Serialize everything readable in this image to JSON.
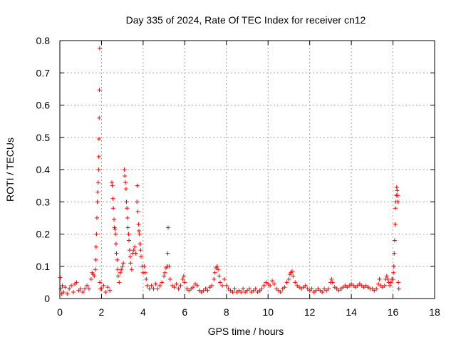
{
  "chart_data": {
    "type": "scatter",
    "title": "Day 335 of 2024, Rate Of TEC Index for receiver cn12",
    "xlabel": "GPS time / hours",
    "ylabel": "ROTI / TECUs",
    "xlim": [
      0,
      18
    ],
    "ylim": [
      0,
      0.8
    ],
    "x_ticks": [
      0,
      2,
      4,
      6,
      8,
      10,
      12,
      14,
      16,
      18
    ],
    "x_tick_labels": [
      "0",
      "2",
      "4",
      "6",
      "8",
      "10",
      "12",
      "14",
      "16",
      "18"
    ],
    "y_ticks": [
      0,
      0.1,
      0.2,
      0.3,
      0.4,
      0.5,
      0.6,
      0.7,
      0.8
    ],
    "y_tick_labels": [
      "0",
      "0.1",
      "0.2",
      "0.3",
      "0.4",
      "0.5",
      "0.6",
      "0.7",
      "0.8"
    ],
    "grid": true,
    "marker": "+",
    "marker_color": "#ff0000",
    "series": [
      {
        "name": "ROTI",
        "points": [
          [
            0.02,
            0.065
          ],
          [
            0.05,
            0.03
          ],
          [
            0.08,
            0.015
          ],
          [
            0.12,
            0.04
          ],
          [
            0.18,
            0.02
          ],
          [
            0.25,
            0.035
          ],
          [
            0.35,
            0.015
          ],
          [
            0.45,
            0.03
          ],
          [
            0.55,
            0.04
          ],
          [
            0.65,
            0.02
          ],
          [
            0.72,
            0.045
          ],
          [
            0.8,
            0.05
          ],
          [
            0.9,
            0.025
          ],
          [
            1.0,
            0.03
          ],
          [
            1.1,
            0.02
          ],
          [
            1.2,
            0.03
          ],
          [
            1.3,
            0.04
          ],
          [
            1.4,
            0.03
          ],
          [
            1.5,
            0.06
          ],
          [
            1.55,
            0.08
          ],
          [
            1.6,
            0.075
          ],
          [
            1.65,
            0.07
          ],
          [
            1.7,
            0.09
          ],
          [
            1.72,
            0.12
          ],
          [
            1.74,
            0.16
          ],
          [
            1.76,
            0.2
          ],
          [
            1.78,
            0.25
          ],
          [
            1.8,
            0.3
          ],
          [
            1.82,
            0.33
          ],
          [
            1.84,
            0.36
          ],
          [
            1.86,
            0.4
          ],
          [
            1.87,
            0.44
          ],
          [
            1.88,
            0.495
          ],
          [
            1.89,
            0.56
          ],
          [
            1.9,
            0.647
          ],
          [
            1.91,
            0.776
          ],
          [
            1.92,
            0.05
          ],
          [
            1.95,
            0.03
          ],
          [
            2.0,
            0.03
          ],
          [
            2.1,
            0.04
          ],
          [
            2.2,
            0.02
          ],
          [
            2.3,
            0.035
          ],
          [
            2.4,
            0.025
          ],
          [
            2.5,
            0.36
          ],
          [
            2.52,
            0.35
          ],
          [
            2.55,
            0.31
          ],
          [
            2.57,
            0.28
          ],
          [
            2.6,
            0.245
          ],
          [
            2.62,
            0.22
          ],
          [
            2.65,
            0.215
          ],
          [
            2.67,
            0.2
          ],
          [
            2.7,
            0.17
          ],
          [
            2.72,
            0.14
          ],
          [
            2.75,
            0.12
          ],
          [
            2.78,
            0.09
          ],
          [
            2.8,
            0.07
          ],
          [
            2.85,
            0.05
          ],
          [
            2.9,
            0.08
          ],
          [
            2.95,
            0.09
          ],
          [
            3.0,
            0.1
          ],
          [
            3.05,
            0.11
          ],
          [
            3.1,
            0.4
          ],
          [
            3.12,
            0.38
          ],
          [
            3.15,
            0.36
          ],
          [
            3.18,
            0.34
          ],
          [
            3.2,
            0.3
          ],
          [
            3.22,
            0.28
          ],
          [
            3.25,
            0.25
          ],
          [
            3.27,
            0.22
          ],
          [
            3.3,
            0.2
          ],
          [
            3.32,
            0.18
          ],
          [
            3.35,
            0.15
          ],
          [
            3.38,
            0.13
          ],
          [
            3.4,
            0.11
          ],
          [
            3.45,
            0.09
          ],
          [
            3.5,
            0.14
          ],
          [
            3.55,
            0.15
          ],
          [
            3.6,
            0.16
          ],
          [
            3.65,
            0.14
          ],
          [
            3.7,
            0.3
          ],
          [
            3.72,
            0.35
          ],
          [
            3.75,
            0.27
          ],
          [
            3.78,
            0.23
          ],
          [
            3.8,
            0.21
          ],
          [
            3.82,
            0.2
          ],
          [
            3.85,
            0.17
          ],
          [
            3.88,
            0.15
          ],
          [
            3.9,
            0.13
          ],
          [
            3.95,
            0.1
          ],
          [
            4.0,
            0.08
          ],
          [
            4.05,
            0.1
          ],
          [
            4.1,
            0.08
          ],
          [
            4.15,
            0.06
          ],
          [
            4.2,
            0.04
          ],
          [
            4.3,
            0.03
          ],
          [
            4.4,
            0.04
          ],
          [
            4.5,
            0.03
          ],
          [
            4.6,
            0.045
          ],
          [
            4.7,
            0.03
          ],
          [
            4.8,
            0.04
          ],
          [
            4.9,
            0.05
          ],
          [
            5.0,
            0.07
          ],
          [
            5.05,
            0.08
          ],
          [
            5.1,
            0.095
          ],
          [
            5.15,
            0.1
          ],
          [
            5.18,
            0.14
          ],
          [
            5.2,
            0.22
          ],
          [
            5.25,
            0.1
          ],
          [
            5.3,
            0.06
          ],
          [
            5.4,
            0.04
          ],
          [
            5.5,
            0.035
          ],
          [
            5.6,
            0.045
          ],
          [
            5.7,
            0.03
          ],
          [
            5.8,
            0.04
          ],
          [
            5.9,
            0.06
          ],
          [
            5.95,
            0.07
          ],
          [
            6.0,
            0.05
          ],
          [
            6.1,
            0.03
          ],
          [
            6.2,
            0.025
          ],
          [
            6.3,
            0.03
          ],
          [
            6.4,
            0.035
          ],
          [
            6.5,
            0.045
          ],
          [
            6.6,
            0.04
          ],
          [
            6.7,
            0.025
          ],
          [
            6.8,
            0.02
          ],
          [
            6.9,
            0.025
          ],
          [
            7.0,
            0.03
          ],
          [
            7.1,
            0.025
          ],
          [
            7.2,
            0.035
          ],
          [
            7.3,
            0.04
          ],
          [
            7.4,
            0.06
          ],
          [
            7.45,
            0.08
          ],
          [
            7.5,
            0.095
          ],
          [
            7.55,
            0.1
          ],
          [
            7.6,
            0.09
          ],
          [
            7.65,
            0.07
          ],
          [
            7.7,
            0.05
          ],
          [
            7.8,
            0.04
          ],
          [
            7.9,
            0.06
          ],
          [
            8.0,
            0.04
          ],
          [
            8.1,
            0.03
          ],
          [
            8.2,
            0.025
          ],
          [
            8.3,
            0.02
          ],
          [
            8.4,
            0.03
          ],
          [
            8.5,
            0.02
          ],
          [
            8.6,
            0.025
          ],
          [
            8.7,
            0.02
          ],
          [
            8.8,
            0.03
          ],
          [
            8.9,
            0.02
          ],
          [
            9.0,
            0.025
          ],
          [
            9.1,
            0.03
          ],
          [
            9.2,
            0.02
          ],
          [
            9.3,
            0.025
          ],
          [
            9.4,
            0.03
          ],
          [
            9.5,
            0.02
          ],
          [
            9.6,
            0.025
          ],
          [
            9.7,
            0.03
          ],
          [
            9.8,
            0.04
          ],
          [
            9.9,
            0.05
          ],
          [
            10.0,
            0.045
          ],
          [
            10.1,
            0.04
          ],
          [
            10.2,
            0.055
          ],
          [
            10.3,
            0.045
          ],
          [
            10.4,
            0.03
          ],
          [
            10.5,
            0.025
          ],
          [
            10.6,
            0.02
          ],
          [
            10.7,
            0.03
          ],
          [
            10.8,
            0.035
          ],
          [
            10.9,
            0.05
          ],
          [
            11.0,
            0.06
          ],
          [
            11.05,
            0.075
          ],
          [
            11.1,
            0.08
          ],
          [
            11.15,
            0.085
          ],
          [
            11.2,
            0.07
          ],
          [
            11.3,
            0.05
          ],
          [
            11.4,
            0.04
          ],
          [
            11.5,
            0.035
          ],
          [
            11.6,
            0.03
          ],
          [
            11.7,
            0.035
          ],
          [
            11.8,
            0.04
          ],
          [
            11.9,
            0.03
          ],
          [
            12.0,
            0.025
          ],
          [
            12.1,
            0.03
          ],
          [
            12.2,
            0.02
          ],
          [
            12.3,
            0.025
          ],
          [
            12.4,
            0.03
          ],
          [
            12.5,
            0.025
          ],
          [
            12.6,
            0.02
          ],
          [
            12.7,
            0.03
          ],
          [
            12.8,
            0.025
          ],
          [
            12.9,
            0.03
          ],
          [
            13.0,
            0.05
          ],
          [
            13.05,
            0.06
          ],
          [
            13.1,
            0.05
          ],
          [
            13.2,
            0.035
          ],
          [
            13.3,
            0.03
          ],
          [
            13.4,
            0.025
          ],
          [
            13.5,
            0.03
          ],
          [
            13.6,
            0.035
          ],
          [
            13.7,
            0.04
          ],
          [
            13.8,
            0.035
          ],
          [
            13.9,
            0.04
          ],
          [
            14.0,
            0.045
          ],
          [
            14.1,
            0.04
          ],
          [
            14.2,
            0.035
          ],
          [
            14.3,
            0.04
          ],
          [
            14.4,
            0.045
          ],
          [
            14.5,
            0.04
          ],
          [
            14.6,
            0.035
          ],
          [
            14.7,
            0.04
          ],
          [
            14.8,
            0.035
          ],
          [
            14.9,
            0.03
          ],
          [
            15.0,
            0.03
          ],
          [
            15.1,
            0.025
          ],
          [
            15.2,
            0.03
          ],
          [
            15.3,
            0.045
          ],
          [
            15.35,
            0.06
          ],
          [
            15.4,
            0.04
          ],
          [
            15.5,
            0.035
          ],
          [
            15.6,
            0.04
          ],
          [
            15.65,
            0.06
          ],
          [
            15.7,
            0.07
          ],
          [
            15.75,
            0.06
          ],
          [
            15.8,
            0.05
          ],
          [
            15.85,
            0.04
          ],
          [
            15.9,
            0.05
          ],
          [
            15.95,
            0.06
          ],
          [
            16.0,
            0.06
          ],
          [
            16.02,
            0.08
          ],
          [
            16.04,
            0.1
          ],
          [
            16.06,
            0.14
          ],
          [
            16.08,
            0.18
          ],
          [
            16.1,
            0.23
          ],
          [
            16.12,
            0.28
          ],
          [
            16.14,
            0.3
          ],
          [
            16.16,
            0.32
          ],
          [
            16.18,
            0.345
          ],
          [
            16.2,
            0.335
          ],
          [
            16.22,
            0.32
          ],
          [
            16.24,
            0.3
          ],
          [
            16.26,
            0.05
          ],
          [
            16.28,
            0.03
          ]
        ]
      }
    ]
  }
}
